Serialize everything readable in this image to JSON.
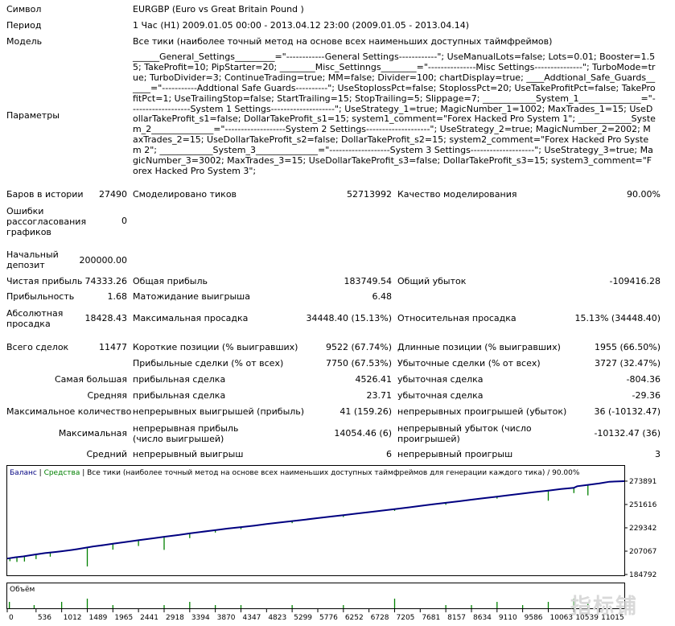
{
  "report": {
    "symbol": {
      "label": "Символ",
      "value": "EURGBP (Euro vs Great Britain Pound )"
    },
    "period": {
      "label": "Период",
      "value": "1 Час (H1) 2009.01.05 00:00 - 2013.04.12 23:00 (2009.01.05 - 2013.04.14)"
    },
    "model": {
      "label": "Модель",
      "value": "Все тики (наиболее точный метод на основе всех наименьших доступных таймфреймов)"
    },
    "parameters": {
      "label": "Параметры",
      "value": "______General_Settings_________=\"------------General Settings------------\"; UseManualLots=false; Lots=0.01; Booster=1.55; TakeProfit=10; PipStarter=20; ________Misc_Settinngs________=\"---------------Misc Settings---------------\"; TurboMode=true; TurboDivider=3; ContinueTrading=true; MM=false; Divider=100; chartDisplay=true; ____Addtional_Safe_Guards______=\"-----------Addtional Safe Guards----------\"; UseStoplossPct=false; StoplossPct=20; UseTakeProfitPct=false; TakeProfitPct=1; UseTrailingStop=false; StartTrailing=15; StopTrailing=5; Slippage=7; ____________System_1______________=\"-------------------System 1 Settings--------------------\"; UseStrategy_1=true; MagicNumber_1=1002; MaxTrades_1=15; UseDollarTakeProfit_s1=false; DollarTakeProfit_s1=15; system1_comment=\"Forex Hacked Pro System 1\"; ____________System_2______________=\"-------------------System 2 Settings--------------------\"; UseStrategy_2=true; MagicNumber_2=2002; MaxTrades_2=15; UseDollarTakeProfit_s2=false; DollarTakeProfit_s2=15; system2_comment=\"Forex Hacked Pro System 2\"; ____________System_3______________=\"-------------------System 3 Settings--------------------\"; UseStrategy_3=true; MagicNumber_3=3002; MaxTrades_3=15; UseDollarTakeProfit_s3=false; DollarTakeProfit_s3=15; system3_comment=\"Forex Hacked Pro System 3\";"
    },
    "bars": {
      "label": "Баров в истории",
      "value": "27490"
    },
    "ticks": {
      "label": "Смоделировано тиков",
      "value": "52713992"
    },
    "quality": {
      "label": "Качество моделирования",
      "value": "90.00%"
    },
    "mismatch": {
      "label": "Ошибки рассогласования графиков",
      "value": "0"
    },
    "deposit": {
      "label": "Начальный депозит",
      "value": "200000.00"
    },
    "net_profit": {
      "label": "Чистая прибыль",
      "value": "74333.26"
    },
    "gross_profit": {
      "label": "Общая прибыль",
      "value": "183749.54"
    },
    "gross_loss": {
      "label": "Общий убыток",
      "value": "-109416.28"
    },
    "profit_factor": {
      "label": "Прибыльность",
      "value": "1.68"
    },
    "expected_payoff": {
      "label": "Матожидание выигрыша",
      "value": "6.48"
    },
    "abs_drawdown": {
      "label": "Абсолютная просадка",
      "value": "18428.43"
    },
    "max_drawdown": {
      "label": "Максимальная просадка",
      "value": "34448.40 (15.13%)"
    },
    "rel_drawdown": {
      "label": "Относительная просадка",
      "value": "15.13% (34448.40)"
    },
    "total_trades": {
      "label": "Всего сделок",
      "value": "11477"
    },
    "short_positions": {
      "label": "Короткие позиции (% выигравших)",
      "value": "9522 (67.74%)"
    },
    "long_positions": {
      "label": "Длинные позиции (% выигравших)",
      "value": "1955 (66.50%)"
    },
    "profit_trades": {
      "label": "Прибыльные сделки (% от всех)",
      "value": "7750 (67.53%)"
    },
    "loss_trades": {
      "label": "Убыточные сделки (% от всех)",
      "value": "3727 (32.47%)"
    },
    "largest": {
      "label": "Самая большая",
      "profit_label": "прибыльная сделка",
      "profit": "4526.41",
      "loss_label": "убыточная сделка",
      "loss": "-804.36"
    },
    "average": {
      "label": "Средняя",
      "profit_label": "прибыльная сделка",
      "profit": "23.71",
      "loss_label": "убыточная сделка",
      "loss": "-29.36"
    },
    "max_consec": {
      "label": "Максимальное количество",
      "wins_label": "непрерывных выигрышей (прибыль)",
      "wins": "41 (159.26)",
      "losses_label": "непрерывных проигрышей (убыток)",
      "losses": "36 (-10132.47)"
    },
    "maximal": {
      "label": "Максимальная",
      "profit_label": "непрерывная прибыль (число выигрышей)",
      "profit": "14054.46 (6)",
      "loss_label": "непрерывный убыток (число проигрышей)",
      "loss": "-10132.47 (36)"
    },
    "avg_consec": {
      "label": "Средний",
      "wins_label": "непрерывный выигрыш",
      "wins": "6",
      "losses_label": "непрерывный проигрыш",
      "losses": "3"
    }
  },
  "chart_data": {
    "type": "line",
    "header": {
      "balance": "Баланс",
      "sep1": " | ",
      "equity": "Средства",
      "sep2": " | ",
      "rest": "Все тики (наиболее точный метод на основе всех наименьших доступных таймфреймов для генерации каждого тика) / 90.00%"
    },
    "volume_label": "Объём",
    "y_ticks": [
      "273891",
      "251616",
      "229342",
      "207067",
      "184792"
    ],
    "y_tick_values": [
      273891,
      251616,
      229342,
      207067,
      184792
    ],
    "ylim": [
      184792,
      280000
    ],
    "x_ticks": [
      "0",
      "536",
      "1012",
      "1489",
      "1965",
      "2441",
      "2918",
      "3394",
      "3870",
      "4347",
      "4823",
      "5299",
      "5776",
      "6252",
      "6728",
      "7205",
      "7681",
      "8157",
      "8634",
      "9110",
      "9586",
      "10063",
      "10539",
      "11015"
    ],
    "xlim": [
      0,
      11477
    ],
    "series": [
      {
        "name": "Баланс",
        "color": "#000080",
        "x": [
          0,
          150,
          300,
          450,
          536,
          700,
          900,
          1012,
          1200,
          1300,
          1400,
          1489,
          1600,
          1800,
          1965,
          2200,
          2441,
          2700,
          2918,
          3200,
          3394,
          3600,
          3870,
          4100,
          4347,
          4600,
          4823,
          5050,
          5299,
          5550,
          5776,
          6000,
          6252,
          6500,
          6728,
          6950,
          7205,
          7450,
          7681,
          7900,
          8157,
          8400,
          8634,
          8850,
          9110,
          9350,
          9586,
          9800,
          10063,
          10300,
          10539,
          10600,
          10800,
          11015,
          11200,
          11477
        ],
        "y": [
          200000,
          201200,
          202100,
          203300,
          204000,
          205200,
          206300,
          207000,
          208200,
          209000,
          209800,
          210600,
          211600,
          212900,
          214100,
          215800,
          217500,
          219300,
          220800,
          222600,
          224000,
          225400,
          227100,
          228600,
          230000,
          231500,
          232900,
          234300,
          235800,
          237200,
          238600,
          240000,
          241400,
          242900,
          244300,
          245700,
          247200,
          248700,
          250200,
          251700,
          253200,
          254700,
          256200,
          257600,
          259100,
          260600,
          262000,
          263400,
          264900,
          266300,
          267500,
          269000,
          270300,
          271800,
          273300,
          273891
        ]
      },
      {
        "name": "Средства",
        "color": "#008000",
        "dips": [
          [
            50,
            197500
          ],
          [
            180,
            196800
          ],
          [
            320,
            197200
          ],
          [
            536,
            199500
          ],
          [
            800,
            201800
          ],
          [
            1489,
            192500
          ],
          [
            1965,
            208500
          ],
          [
            2441,
            212000
          ],
          [
            2918,
            208300
          ],
          [
            3394,
            219500
          ],
          [
            3870,
            224800
          ],
          [
            4347,
            228000
          ],
          [
            5299,
            233800
          ],
          [
            6252,
            239600
          ],
          [
            7205,
            245500
          ],
          [
            8157,
            251300
          ],
          [
            9110,
            257200
          ],
          [
            10063,
            255200
          ],
          [
            10539,
            262500
          ],
          [
            10800,
            260300
          ]
        ]
      }
    ],
    "volume": [
      [
        40,
        2
      ],
      [
        500,
        1
      ],
      [
        1012,
        2
      ],
      [
        1489,
        3
      ],
      [
        1965,
        1
      ],
      [
        2918,
        1
      ],
      [
        3394,
        2
      ],
      [
        3870,
        1
      ],
      [
        4347,
        1
      ],
      [
        5299,
        1
      ],
      [
        6252,
        1
      ],
      [
        7205,
        3
      ],
      [
        8157,
        1
      ],
      [
        8634,
        1
      ],
      [
        9110,
        2
      ],
      [
        9586,
        1
      ],
      [
        10063,
        2
      ],
      [
        10539,
        3
      ],
      [
        10800,
        2
      ]
    ],
    "axis_color": "#000000"
  },
  "watermark": "指标铺"
}
